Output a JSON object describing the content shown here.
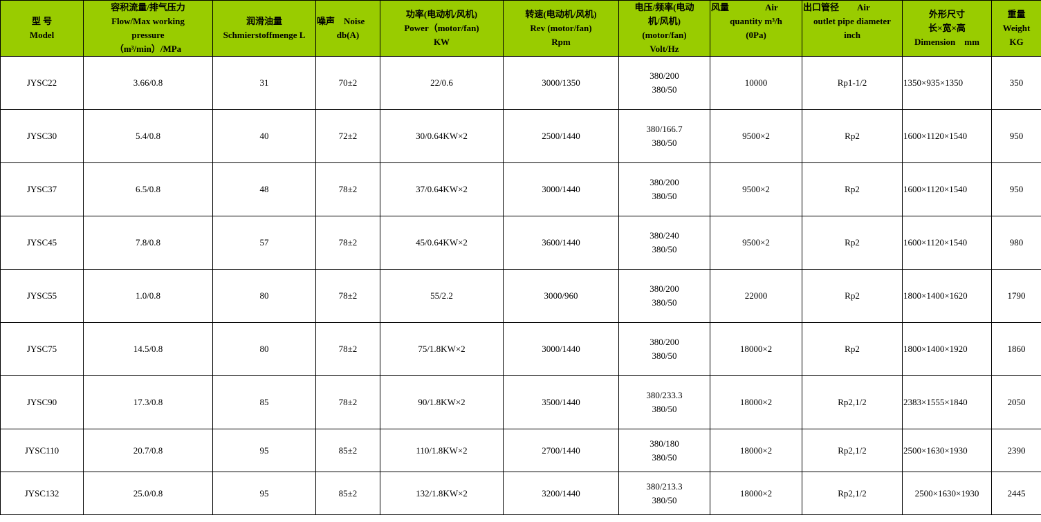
{
  "table": {
    "header": [
      {
        "lines": [
          "型 号",
          "Model"
        ]
      },
      {
        "lines": [
          "容积流量/排气压力",
          "Flow/Max working",
          "pressure",
          "（m³/min）/MPa"
        ]
      },
      {
        "lines": [
          "润滑油量",
          "Schmierstoffmenge L"
        ]
      },
      {
        "lines": [
          "噪声　Noise",
          "db(A)"
        ]
      },
      {
        "lines": [
          "功率(电动机/风机)",
          "Power（motor/fan)",
          "KW"
        ]
      },
      {
        "lines": [
          "转速(电动机/风机)",
          "Rev (motor/fan)",
          "Rpm"
        ]
      },
      {
        "lines": [
          "电压/频率(电动",
          "机/风机)",
          "(motor/fan)",
          "Volt/Hz"
        ]
      },
      {
        "lines": [
          "风量　　　　Air",
          "quantity m³/h",
          "(0Pa)"
        ]
      },
      {
        "lines": [
          "出口管径　　Air",
          "outlet pipe diameter",
          "inch"
        ]
      },
      {
        "lines": [
          "外形尺寸",
          "长×宽×高",
          "Dimension　mm"
        ]
      },
      {
        "lines": [
          "重量",
          "Weight",
          "KG"
        ]
      }
    ],
    "rows": [
      [
        "JYSC22",
        "3.66/0.8",
        "31",
        "70±2",
        "22/0.6",
        "3000/1350",
        [
          "380/200",
          "380/50"
        ],
        "10000",
        "Rp1-1/2",
        "1350×935×1350",
        "350"
      ],
      [
        "JYSC30",
        "5.4/0.8",
        "40",
        "72±2",
        "30/0.64KW×2",
        "2500/1440",
        [
          "380/166.7",
          "380/50"
        ],
        "9500×2",
        "Rp2",
        "1600×1120×1540",
        "950"
      ],
      [
        "JYSC37",
        "6.5/0.8",
        "48",
        "78±2",
        "37/0.64KW×2",
        "3000/1440",
        [
          "380/200",
          "380/50"
        ],
        "9500×2",
        "Rp2",
        "1600×1120×1540",
        "950"
      ],
      [
        "JYSC45",
        "7.8/0.8",
        "57",
        "78±2",
        "45/0.64KW×2",
        "3600/1440",
        [
          "380/240",
          "380/50"
        ],
        "9500×2",
        "Rp2",
        "1600×1120×1540",
        "980"
      ],
      [
        "JYSC55",
        "1.0/0.8",
        "80",
        "78±2",
        "55/2.2",
        "3000/960",
        [
          "380/200",
          "380/50"
        ],
        "22000",
        "Rp2",
        "1800×1400×1620",
        "1790"
      ],
      [
        "JYSC75",
        "14.5/0.8",
        "80",
        "78±2",
        "75/1.8KW×2",
        "3000/1440",
        [
          "380/200",
          "380/50"
        ],
        "18000×2",
        "Rp2",
        "1800×1400×1920",
        "1860"
      ],
      [
        "JYSC90",
        "17.3/0.8",
        "85",
        "78±2",
        "90/1.8KW×2",
        "3500/1440",
        [
          "380/233.3",
          "380/50"
        ],
        "18000×2",
        "Rp2,1/2",
        "2383×1555×1840",
        "2050"
      ],
      [
        "JYSC110",
        "20.7/0.8",
        "95",
        "85±2",
        "110/1.8KW×2",
        "2700/1440",
        [
          "380/180",
          "380/50"
        ],
        "18000×2",
        "Rp2,1/2",
        "2500×1630×1930",
        "2390"
      ],
      [
        "JYSC132",
        "25.0/0.8",
        "95",
        "85±2",
        "132/1.8KW×2",
        "3200/1440",
        [
          "380/213.3",
          "380/50"
        ],
        "18000×2",
        "Rp2,1/2",
        "2500×1630×1930",
        "2445"
      ]
    ],
    "header_color": "#99cc00"
  }
}
